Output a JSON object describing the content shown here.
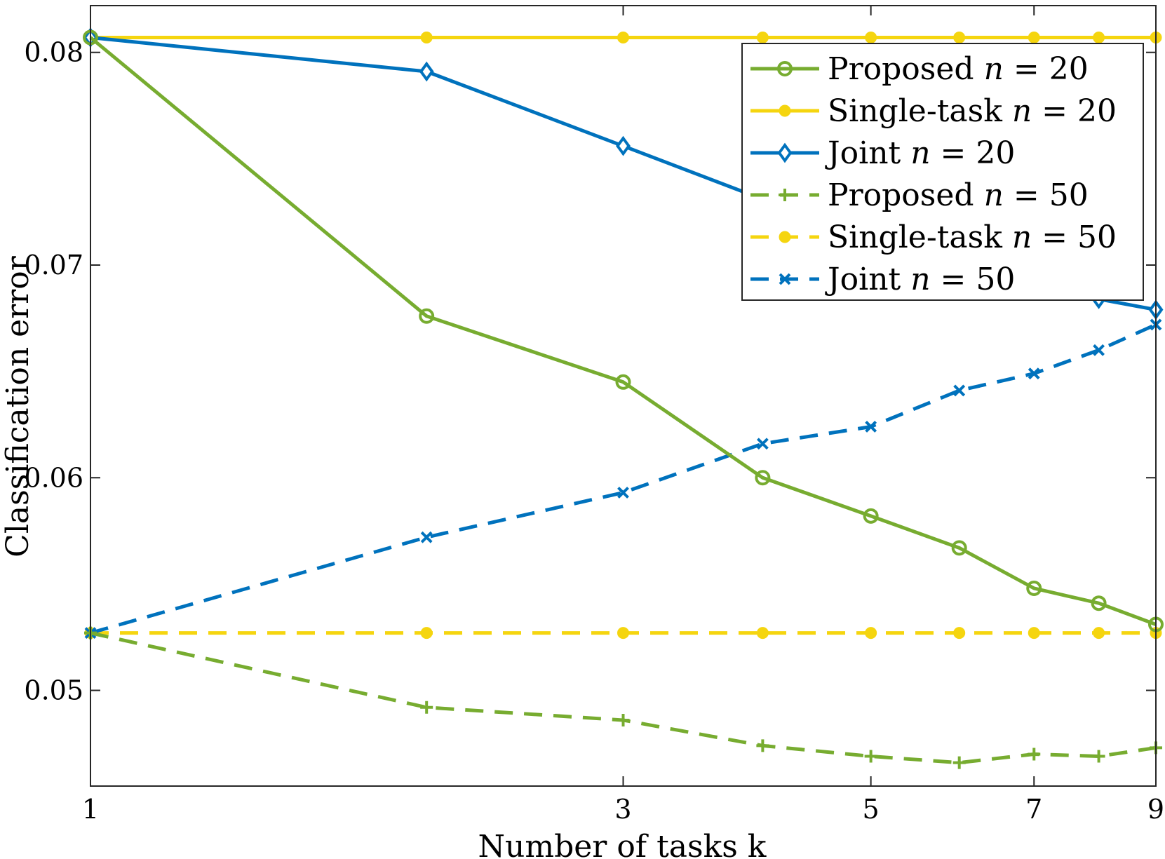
{
  "chart_data": {
    "type": "line",
    "xlabel": "Number of tasks k",
    "ylabel": "Classification error",
    "xlim": [
      1,
      9
    ],
    "ylim": [
      0.0455,
      0.0822
    ],
    "x_scale": "log",
    "x_ticks": [
      1,
      3,
      5,
      7,
      9
    ],
    "x_tick_labels": [
      "1",
      "3",
      "5",
      "7",
      "9"
    ],
    "y_ticks": [
      0.05,
      0.06,
      0.07,
      0.08
    ],
    "y_tick_labels": [
      "0.05",
      "0.06",
      "0.07",
      "0.08"
    ],
    "grid": false,
    "legend_position": "top-right",
    "x": [
      1,
      2,
      3,
      4,
      5,
      6,
      7,
      8,
      9
    ],
    "series": [
      {
        "name": "Proposed n = 20",
        "color": "#77AC30",
        "dash": "solid",
        "marker": "circle-open",
        "values": [
          0.0807,
          0.0676,
          0.0645,
          0.06,
          0.0582,
          0.0567,
          0.0548,
          0.0541,
          0.0531
        ]
      },
      {
        "name": "Single-task n = 20",
        "color": "#F5D50F",
        "dash": "solid",
        "marker": "dot",
        "values": [
          0.0807,
          0.0807,
          0.0807,
          0.0807,
          0.0807,
          0.0807,
          0.0807,
          0.0807,
          0.0807
        ]
      },
      {
        "name": "Joint n = 20",
        "color": "#0072BD",
        "dash": "solid",
        "marker": "diamond-open",
        "values": [
          0.0807,
          0.0791,
          0.0756,
          0.0731,
          0.0718,
          0.0706,
          0.0695,
          0.0684,
          0.0679
        ]
      },
      {
        "name": "Proposed n = 50",
        "color": "#77AC30",
        "dash": "dashed",
        "marker": "plus",
        "values": [
          0.0527,
          0.0492,
          0.0486,
          0.0474,
          0.0469,
          0.0466,
          0.047,
          0.0469,
          0.0473
        ]
      },
      {
        "name": "Single-task n = 50",
        "color": "#F5D50F",
        "dash": "dashed",
        "marker": "dot",
        "values": [
          0.0527,
          0.0527,
          0.0527,
          0.0527,
          0.0527,
          0.0527,
          0.0527,
          0.0527,
          0.0527
        ]
      },
      {
        "name": "Joint n = 50",
        "color": "#0072BD",
        "dash": "dashed",
        "marker": "x",
        "values": [
          0.0527,
          0.0572,
          0.0593,
          0.0616,
          0.0624,
          0.0641,
          0.0649,
          0.066,
          0.0672
        ]
      }
    ],
    "legend": [
      {
        "label": "Proposed",
        "n": "20"
      },
      {
        "label": "Single-task",
        "n": "20"
      },
      {
        "label": "Joint",
        "n": "20"
      },
      {
        "label": "Proposed",
        "n": "50"
      },
      {
        "label": "Single-task",
        "n": "50"
      },
      {
        "label": "Joint",
        "n": "50"
      }
    ]
  }
}
